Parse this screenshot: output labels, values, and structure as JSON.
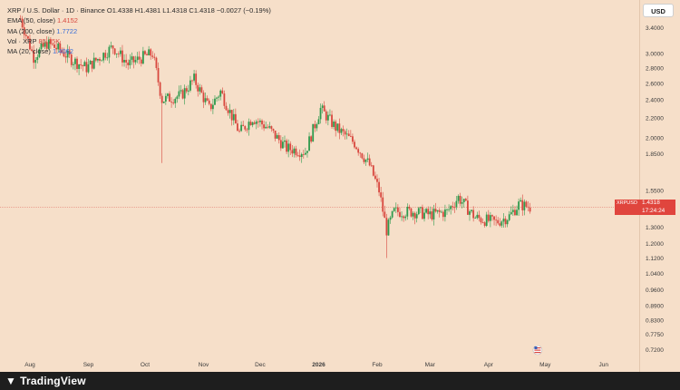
{
  "legend": {
    "symbol_line": "XRP / U.S. Dollar · 1D · Binance",
    "ohlc": "O1.4338 H1.4381 L1.4318 C1.4318 −0.0027 (−0.19%)",
    "ema50_label": "EMA (50, close)",
    "ema50_value": "1.4152",
    "ma200_label": "MA (200, close)",
    "ma200_value": "1.7722",
    "vol_label": "Vol · XRP",
    "vol_value": "85.75K",
    "ma20_label": "MA (20, close)",
    "ma20_value": "1.4062"
  },
  "currency_button": "USD",
  "price_tag": {
    "symbol": "XRPUSD",
    "price": "1.4318",
    "countdown": "17:24:24"
  },
  "brand": "TradingView",
  "colors": {
    "background": "#f6dfc9",
    "up_candle": "#2e9a4d",
    "down_candle": "#d8473e",
    "price_line": "#d8473e"
  },
  "chart_data": {
    "type": "candlestick",
    "y_scale": "log",
    "ylim": [
      0.7,
      3.75
    ],
    "y_ticks": [
      "3.4000",
      "3.0000",
      "2.8000",
      "2.6000",
      "2.4000",
      "2.2000",
      "2.0000",
      "1.8500",
      "1.5500",
      "1.4318",
      "1.3000",
      "1.2000",
      "1.1200",
      "1.0400",
      "0.9600",
      "0.8900",
      "0.8300",
      "0.7750",
      "0.7200"
    ],
    "x_ticks": [
      "Aug",
      "Sep",
      "Oct",
      "Nov",
      "Dec",
      "2026",
      "Feb",
      "Mar",
      "Apr",
      "May",
      "Jun"
    ],
    "last_price": 1.4318,
    "key_points": [
      {
        "date": "2025-07-27",
        "close": 3.55
      },
      {
        "date": "2025-08-03",
        "close": 2.95
      },
      {
        "date": "2025-08-10",
        "close": 3.15
      },
      {
        "date": "2025-08-17",
        "close": 3.05
      },
      {
        "date": "2025-08-24",
        "close": 2.9
      },
      {
        "date": "2025-08-31",
        "close": 2.8
      },
      {
        "date": "2025-09-14",
        "close": 3.1
      },
      {
        "date": "2025-09-22",
        "close": 2.85
      },
      {
        "date": "2025-09-30",
        "close": 2.95
      },
      {
        "date": "2025-10-05",
        "close": 3.0
      },
      {
        "date": "2025-10-10",
        "close": 2.4,
        "low": 1.77
      },
      {
        "date": "2025-10-20",
        "close": 2.45
      },
      {
        "date": "2025-10-27",
        "close": 2.65
      },
      {
        "date": "2025-11-04",
        "close": 2.3
      },
      {
        "date": "2025-11-10",
        "close": 2.5
      },
      {
        "date": "2025-11-20",
        "close": 2.05
      },
      {
        "date": "2025-11-27",
        "close": 2.2
      },
      {
        "date": "2025-12-05",
        "close": 2.1
      },
      {
        "date": "2025-12-15",
        "close": 1.9
      },
      {
        "date": "2025-12-25",
        "close": 1.87
      },
      {
        "date": "2026-01-02",
        "close": 2.3
      },
      {
        "date": "2026-01-10",
        "close": 2.1
      },
      {
        "date": "2026-01-20",
        "close": 1.95
      },
      {
        "date": "2026-01-28",
        "close": 1.75
      },
      {
        "date": "2026-02-02",
        "close": 1.55
      },
      {
        "date": "2026-02-06",
        "close": 1.28,
        "low": 1.12
      },
      {
        "date": "2026-02-10",
        "close": 1.4
      },
      {
        "date": "2026-02-20",
        "close": 1.4
      },
      {
        "date": "2026-03-01",
        "close": 1.38
      },
      {
        "date": "2026-03-10",
        "close": 1.4
      },
      {
        "date": "2026-03-16",
        "close": 1.5
      },
      {
        "date": "2026-03-25",
        "close": 1.36
      },
      {
        "date": "2026-04-05",
        "close": 1.33
      },
      {
        "date": "2026-04-12",
        "close": 1.37
      },
      {
        "date": "2026-04-17",
        "close": 1.45
      },
      {
        "date": "2026-04-23",
        "close": 1.4318
      }
    ]
  }
}
